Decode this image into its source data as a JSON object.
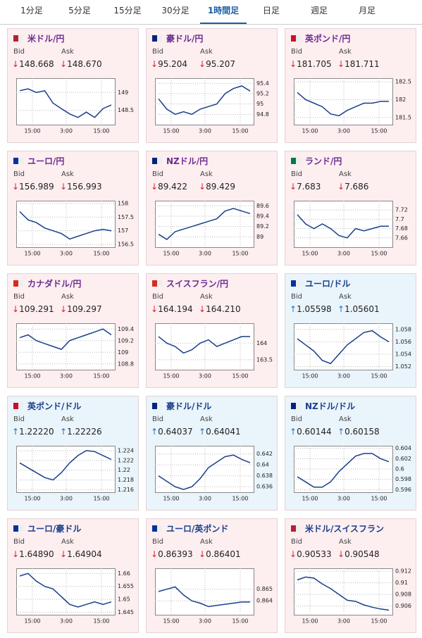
{
  "tabs": [
    "1分足",
    "5分足",
    "15分足",
    "30分足",
    "1時間足",
    "日足",
    "週足",
    "月足"
  ],
  "selected_tab": 4,
  "labels": {
    "bid": "Bid",
    "ask": "Ask"
  },
  "x_labels": [
    "15:00",
    "3:00",
    "15:00"
  ],
  "cards": [
    {
      "name": "米ドル/円",
      "bg": "#fdeef0",
      "name_color": "#6b2c91",
      "arrow": "↓",
      "arrow_color": "#e02020",
      "bid": "148.668",
      "ask": "148.670",
      "ylim": [
        148.1,
        149.4
      ],
      "yticks": [
        149,
        148.5
      ],
      "closes": [
        149.05,
        149.1,
        149.0,
        149.05,
        148.7,
        148.55,
        148.4,
        148.3,
        148.45,
        148.3,
        148.55,
        148.65
      ]
    },
    {
      "name": "豪ドル/円",
      "bg": "#fdeef0",
      "name_color": "#6b2c91",
      "arrow": "↓",
      "arrow_color": "#e02020",
      "bid": "95.204",
      "ask": "95.207",
      "ylim": [
        94.6,
        95.5
      ],
      "yticks": [
        95.4,
        95.2,
        95,
        94.8
      ],
      "closes": [
        95.1,
        94.9,
        94.8,
        94.85,
        94.8,
        94.9,
        94.95,
        95.0,
        95.2,
        95.3,
        95.35,
        95.25
      ]
    },
    {
      "name": "英ポンド/円",
      "bg": "#fdeef0",
      "name_color": "#6b2c91",
      "arrow": "↓",
      "arrow_color": "#e02020",
      "bid": "181.705",
      "ask": "181.711",
      "ylim": [
        181.3,
        182.6
      ],
      "yticks": [
        182.5,
        182,
        181.5
      ],
      "closes": [
        182.2,
        182.0,
        181.9,
        181.8,
        181.6,
        181.55,
        181.7,
        181.8,
        181.9,
        181.9,
        181.95,
        181.95
      ]
    },
    {
      "name": "ユーロ/円",
      "bg": "#fdeef0",
      "name_color": "#6b2c91",
      "arrow": "↓",
      "arrow_color": "#e02020",
      "bid": "156.989",
      "ask": "156.993",
      "ylim": [
        156.4,
        158.1
      ],
      "yticks": [
        158,
        157.5,
        157,
        156.5
      ],
      "closes": [
        157.7,
        157.4,
        157.3,
        157.1,
        157.0,
        156.9,
        156.7,
        156.8,
        156.9,
        157.0,
        157.05,
        157.0
      ]
    },
    {
      "name": "NZドル/円",
      "bg": "#fdeef0",
      "name_color": "#6b2c91",
      "arrow": "↓",
      "arrow_color": "#e02020",
      "bid": "89.422",
      "ask": "89.429",
      "ylim": [
        88.8,
        89.7
      ],
      "yticks": [
        89.6,
        89.4,
        89.2,
        89
      ],
      "closes": [
        89.05,
        88.95,
        89.1,
        89.15,
        89.2,
        89.25,
        89.3,
        89.35,
        89.5,
        89.55,
        89.5,
        89.45
      ]
    },
    {
      "name": "ランド/円",
      "bg": "#fdeef0",
      "name_color": "#6b2c91",
      "arrow": "↓",
      "arrow_color": "#e02020",
      "bid": "7.683",
      "ask": "7.686",
      "ylim": [
        7.64,
        7.74
      ],
      "yticks": [
        7.72,
        7.7,
        7.68,
        7.66
      ],
      "closes": [
        7.71,
        7.69,
        7.68,
        7.69,
        7.68,
        7.665,
        7.66,
        7.68,
        7.675,
        7.68,
        7.685,
        7.685
      ]
    },
    {
      "name": "カナダドル/円",
      "bg": "#fdeef0",
      "name_color": "#6b2c91",
      "arrow": "↓",
      "arrow_color": "#e02020",
      "bid": "109.291",
      "ask": "109.297",
      "ylim": [
        108.7,
        109.5
      ],
      "yticks": [
        109.4,
        109.2,
        109,
        108.8
      ],
      "closes": [
        109.25,
        109.3,
        109.2,
        109.15,
        109.1,
        109.05,
        109.2,
        109.25,
        109.3,
        109.35,
        109.4,
        109.3
      ]
    },
    {
      "name": "スイスフラン/円",
      "bg": "#fdeef0",
      "name_color": "#6b2c91",
      "arrow": "↓",
      "arrow_color": "#e02020",
      "bid": "164.194",
      "ask": "164.210",
      "ylim": [
        163.2,
        164.6
      ],
      "yticks": [
        164,
        163.5
      ],
      "closes": [
        164.2,
        164.0,
        163.9,
        163.7,
        163.8,
        164.0,
        164.1,
        163.9,
        164.0,
        164.1,
        164.2,
        164.2
      ]
    },
    {
      "name": "ユーロ/ドル",
      "bg": "#eaf4fb",
      "name_color": "#1a3f8a",
      "arrow": "↑",
      "arrow_color": "#1a73c8",
      "bid": "1.05598",
      "ask": "1.05601",
      "ylim": [
        1.0515,
        1.059
      ],
      "yticks": [
        1.058,
        1.056,
        1.054,
        1.052
      ],
      "closes": [
        1.0565,
        1.0555,
        1.0545,
        1.053,
        1.0525,
        1.054,
        1.0555,
        1.0565,
        1.0575,
        1.0578,
        1.0568,
        1.056
      ]
    },
    {
      "name": "英ポンド/ドル",
      "bg": "#eaf4fb",
      "name_color": "#1a3f8a",
      "arrow": "↑",
      "arrow_color": "#1a73c8",
      "bid": "1.22220",
      "ask": "1.22226",
      "ylim": [
        1.2155,
        1.225
      ],
      "yticks": [
        1.224,
        1.222,
        1.22,
        1.218,
        1.216
      ],
      "closes": [
        1.2215,
        1.2205,
        1.2195,
        1.2185,
        1.218,
        1.2195,
        1.2215,
        1.223,
        1.224,
        1.2238,
        1.223,
        1.2222
      ]
    },
    {
      "name": "豪ドル/ドル",
      "bg": "#eaf4fb",
      "name_color": "#1a3f8a",
      "arrow": "↑",
      "arrow_color": "#1a73c8",
      "bid": "0.64037",
      "ask": "0.64041",
      "ylim": [
        0.635,
        0.6435
      ],
      "yticks": [
        0.642,
        0.64,
        0.638,
        0.636
      ],
      "closes": [
        0.638,
        0.637,
        0.636,
        0.6355,
        0.636,
        0.6375,
        0.6395,
        0.6405,
        0.6415,
        0.6418,
        0.641,
        0.6404
      ]
    },
    {
      "name": "NZドル/ドル",
      "bg": "#eaf4fb",
      "name_color": "#1a3f8a",
      "arrow": "↑",
      "arrow_color": "#1a73c8",
      "bid": "0.60144",
      "ask": "0.60158",
      "ylim": [
        0.5955,
        0.6045
      ],
      "yticks": [
        0.604,
        0.602,
        0.6,
        0.598,
        0.596
      ],
      "closes": [
        0.5985,
        0.5975,
        0.5965,
        0.5965,
        0.5975,
        0.5995,
        0.601,
        0.6025,
        0.603,
        0.603,
        0.602,
        0.6014
      ]
    },
    {
      "name": "ユーロ/豪ドル",
      "bg": "#fdeef0",
      "name_color": "#1a3f8a",
      "arrow": "↓",
      "arrow_color": "#e02020",
      "bid": "1.64890",
      "ask": "1.64904",
      "ylim": [
        1.644,
        1.662
      ],
      "yticks": [
        1.66,
        1.655,
        1.65,
        1.645
      ],
      "closes": [
        1.659,
        1.66,
        1.657,
        1.655,
        1.654,
        1.651,
        1.648,
        1.647,
        1.648,
        1.649,
        1.648,
        1.649
      ]
    },
    {
      "name": "ユーロ/英ポンド",
      "bg": "#fdeef0",
      "name_color": "#1a3f8a",
      "arrow": "↓",
      "arrow_color": "#e02020",
      "bid": "0.86393",
      "ask": "0.86401",
      "ylim": [
        0.8628,
        0.8668
      ],
      "yticks": [
        0.865,
        0.864
      ],
      "closes": [
        0.8648,
        0.865,
        0.8652,
        0.8645,
        0.864,
        0.8638,
        0.8635,
        0.8636,
        0.8637,
        0.8638,
        0.8639,
        0.8639
      ]
    },
    {
      "name": "米ドル/スイスフラン",
      "bg": "#fdeef0",
      "name_color": "#1a3f8a",
      "arrow": "↓",
      "arrow_color": "#e02020",
      "bid": "0.90533",
      "ask": "0.90548",
      "ylim": [
        0.9045,
        0.9125
      ],
      "yticks": [
        0.912,
        0.91,
        0.908,
        0.906
      ],
      "closes": [
        0.9105,
        0.911,
        0.9108,
        0.9098,
        0.909,
        0.908,
        0.907,
        0.9068,
        0.9062,
        0.9058,
        0.9055,
        0.9053
      ]
    }
  ]
}
